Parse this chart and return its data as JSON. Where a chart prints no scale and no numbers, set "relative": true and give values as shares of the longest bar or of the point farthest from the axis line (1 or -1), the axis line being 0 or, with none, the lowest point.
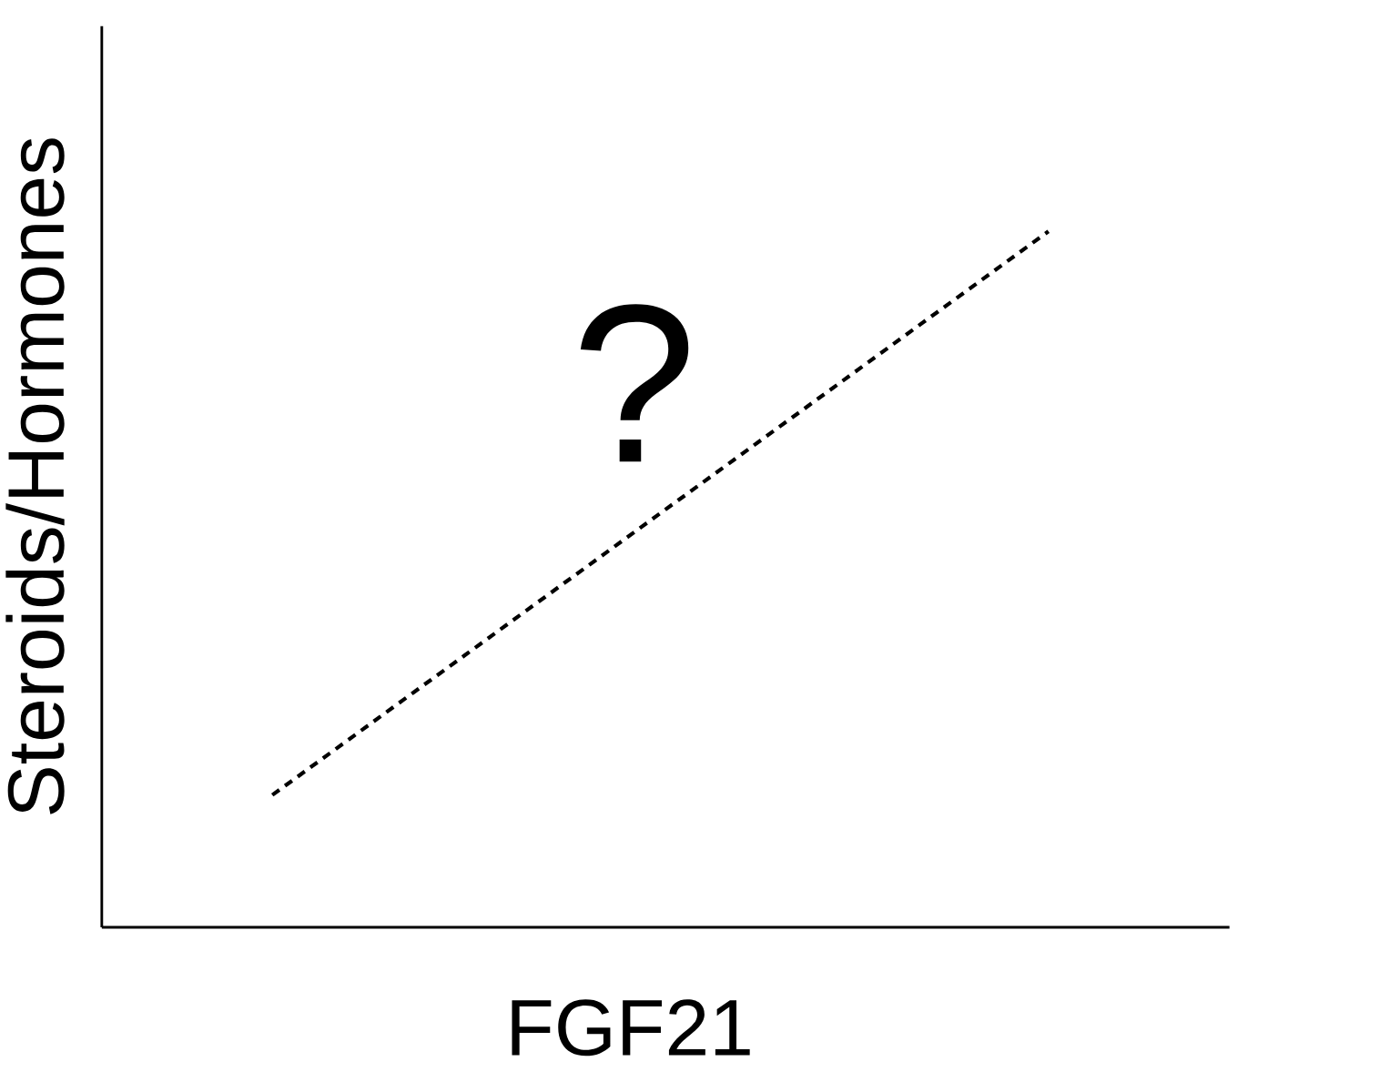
{
  "chart_data": {
    "type": "line",
    "relative": true,
    "xlabel": "FGF21",
    "ylabel": "Steroids/Hormones",
    "categories": [
      null,
      null
    ],
    "series": [
      {
        "color": "#000000",
        "values": [
          0.19,
          1
        ]
      }
    ],
    "line_style": "dashed",
    "marker": "none",
    "annotations": [
      "?"
    ]
  }
}
